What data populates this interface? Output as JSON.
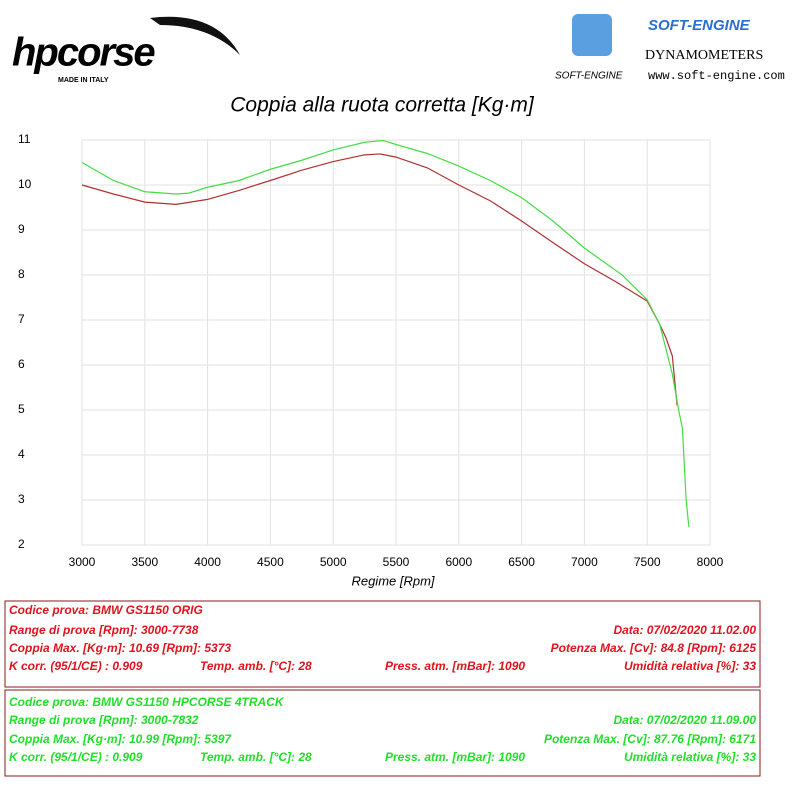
{
  "header": {
    "brand": "hpcorse",
    "brand_tagline": "MADE IN ITALY",
    "partner": "SOFT-ENGINE",
    "partner_logo": "SOFT-ENGINE",
    "partner_subtitle": "DYNAMOMETERS",
    "partner_url": "www.soft-engine.com"
  },
  "chart_data": {
    "type": "line",
    "title": "Coppia alla ruota corretta [Kg·m]",
    "x_label": "Regime [Rpm]",
    "xlim": [
      3000,
      8000
    ],
    "xticks": [
      3000,
      3500,
      4000,
      4500,
      5000,
      5500,
      6000,
      6500,
      7000,
      7500,
      8000
    ],
    "ylim": [
      2,
      11
    ],
    "yticks": [
      2,
      3,
      4,
      5,
      6,
      7,
      8,
      9,
      10,
      11
    ],
    "grid": true,
    "series": [
      {
        "color": "#b03030",
        "x": [
          3000,
          3250,
          3500,
          3750,
          4000,
          4250,
          4500,
          4750,
          5000,
          5250,
          5373,
          5500,
          5750,
          6000,
          6250,
          6500,
          6750,
          7000,
          7250,
          7500,
          7600,
          7650,
          7700,
          7738
        ],
        "values": [
          10.0,
          9.8,
          9.62,
          9.57,
          9.68,
          9.88,
          10.1,
          10.33,
          10.52,
          10.67,
          10.69,
          10.62,
          10.38,
          10.0,
          9.65,
          9.2,
          8.72,
          8.25,
          7.85,
          7.42,
          6.9,
          6.6,
          6.2,
          5.1
        ]
      },
      {
        "color": "#44dd44",
        "x": [
          3000,
          3250,
          3500,
          3750,
          3850,
          4000,
          4250,
          4500,
          4750,
          5000,
          5250,
          5397,
          5500,
          5750,
          6000,
          6250,
          6500,
          6750,
          7000,
          7250,
          7300,
          7500,
          7600,
          7700,
          7750,
          7780,
          7810,
          7832
        ],
        "values": [
          10.5,
          10.1,
          9.85,
          9.8,
          9.82,
          9.95,
          10.1,
          10.35,
          10.55,
          10.78,
          10.95,
          10.99,
          10.9,
          10.7,
          10.42,
          10.1,
          9.72,
          9.2,
          8.6,
          8.1,
          8.0,
          7.45,
          6.9,
          5.8,
          5.0,
          4.6,
          3.0,
          2.4
        ]
      }
    ]
  },
  "tests": [
    {
      "code": "Codice prova: BMW GS1150 ORIG",
      "range": "Range di prova [Rpm]: 3000-7738",
      "date": "Data: 07/02/2020   11.02.00",
      "torque": "Coppia Max. [Kg·m]: 10.69  [Rpm]: 5373",
      "power": "Potenza Max. [Cv]: 84.8  [Rpm]: 6125",
      "kcorr": "K corr. (95/1/CE) : 0.909",
      "temp": "Temp. amb. [°C]: 28",
      "press": "Press. atm. [mBar]: 1090",
      "humidity": "Umidità relativa [%]: 33"
    },
    {
      "code": "Codice prova: BMW GS1150 HPCORSE 4TRACK",
      "range": "Range di prova [Rpm]: 3000-7832",
      "date": "Data: 07/02/2020   11.09.00",
      "torque": "Coppia Max. [Kg·m]: 10.99  [Rpm]: 5397",
      "power": "Potenza Max. [Cv]: 87.76  [Rpm]: 6171",
      "kcorr": "K corr. (95/1/CE) : 0.909",
      "temp": "Temp. amb. [°C]: 28",
      "press": "Press. atm. [mBar]: 1090",
      "humidity": "Umidità relativa [%]: 33"
    }
  ]
}
